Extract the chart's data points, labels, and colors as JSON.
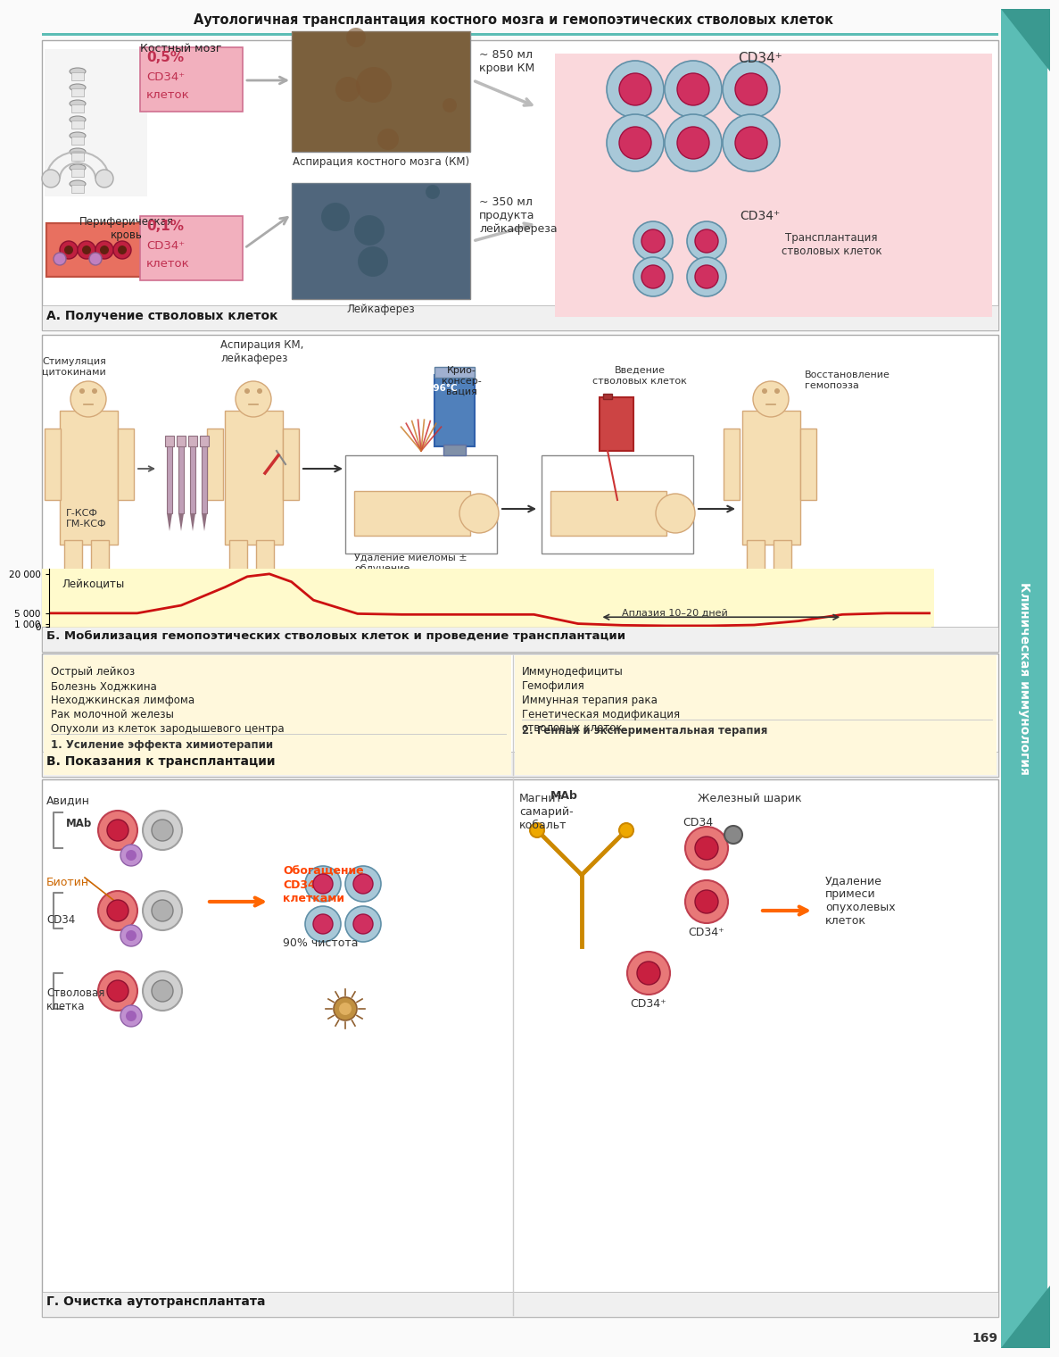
{
  "title": "Аутологичная трансплантация костного мозга и гемопоэтических стволовых клеток",
  "sidebar_text": "Клиническая иммунология",
  "section_A_title": "А. Получение стволовых клеток",
  "section_B_title": "Б. Мобилизация гемопоэтических стволовых клеток и проведение трансплантации",
  "section_C_title": "В. Показания к трансплантации",
  "section_D_title": "Г. Очистка аутотрансплантата",
  "page_number": "169",
  "bg_color": "#FAFAFA",
  "teal_color": "#5BBDB5",
  "teal_dark": "#3A9990",
  "pink_label_bg": "#F2B0BE",
  "pink_label_ec": "#D07090",
  "light_pink_bg": "#FAD8DC",
  "light_yellow_bg": "#FFFFF0",
  "graph_line_color": "#CC1111",
  "indication_bg": "#FFF8DC",
  "body_color": "#F5DEB3",
  "body_ec": "#D4A878",
  "leukocyte_label": "Лейкоциты",
  "aplasia_label": "Аплазия 10–20 дней",
  "kostny_mozg": "Костный мозг",
  "periph_krov": "Периферическая\nкровь",
  "aspiratsiya_label": "Аспирация костного мозга (КМ)",
  "leikafarez_label": "Лейкаферез",
  "transplant_label": "Трансплантация\nстволовых клеток",
  "cd34_percent_bone": "0,5%",
  "cd34_percent_periph": "0,1%",
  "cd34_plus": "CD34⁺",
  "cd34_kletok": "клеток",
  "ml_kosti": "~ 850 мл\nкрови КМ",
  "ml_periph": "~ 350 мл\nпродукта\nлейкафереза",
  "stimul_label": "Стимуляция\nцитокинами",
  "gksf_label": "Г-КСФ\nГМ-КСФ",
  "aspiratsiya_km": "Аспирация КМ,\nлейкаферез",
  "kriokonserv": "Крио-\nконсер-\nвация",
  "temp_label": "196°C",
  "vvedenie_label": "Введение\nстволовых клеток",
  "vosstanov_label": "Восстановление\nгемопоэза",
  "udalenie_mielomy": "Удаление миеломы ±\nоблучение",
  "indication1_lines": [
    "Острый лейкоз",
    "Болезнь Ходжкина",
    "Неходжкинская лимфома",
    "Рак молочной железы",
    "Опухоли из клеток зародышевого центра"
  ],
  "indication1_footer": "1. Усиление эффекта химиотерапии",
  "indication2_lines": [
    "Иммунодефициты",
    "Гемофилия",
    "Иммунная терапия рака",
    "Генетическая модификация\nстволовых клеток"
  ],
  "indication2_footer": "2. Генная и экспериментальная терапия",
  "avidin_label": "Авидин",
  "biotin_label": "Биотин",
  "mab_label": "МАb",
  "cd34_label": "CD34",
  "stem_cell_label": "Стволовая\nклетка",
  "enrichment_label": "Обогащение\nCD34⁺\nклетками",
  "purity_label": "90% чистота",
  "magnet_label": "Магнит\nсамарий-\nкобальт",
  "iron_ball_label": "Железный шарик",
  "mab2_label": "МАb",
  "cd34_2": "CD34",
  "cd34plus_2": "CD34⁺",
  "cd34plus_3": "CD34⁺",
  "udalenie_primesi": "Удаление\nпримеси\nопухолевых\nклеток",
  "cell_outer_fc": "#A8C8D8",
  "cell_outer_ec": "#6090A8",
  "cell_inner_fc": "#D03060",
  "cell_inner_ec": "#A01040"
}
